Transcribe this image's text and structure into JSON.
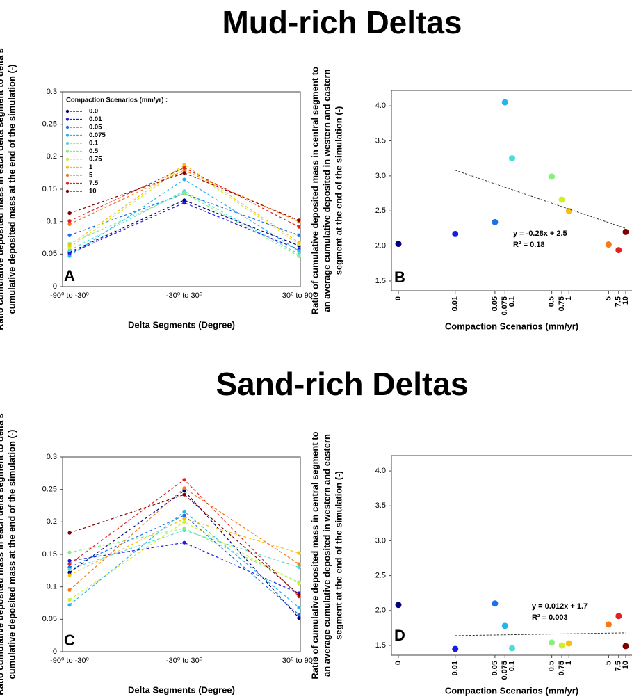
{
  "headings": [
    "Mud-rich Deltas",
    "Sand-rich Deltas"
  ],
  "chart_data": [
    {
      "type": "line",
      "label": "A",
      "categories": [
        "-90⁰ to -30⁰",
        "-30⁰ to 30⁰",
        "30⁰ to 90⁰"
      ],
      "xlabel": "Delta Segments (Degree)",
      "ylabel": [
        "Ratio cumulative deposited mass in each delta segment to delta's",
        "cumulative deposited mass at the end of the simulation (-)"
      ],
      "ylim": [
        0,
        0.3
      ],
      "yticks": [
        0,
        0.05,
        0.1,
        0.15,
        0.2,
        0.25,
        0.3
      ],
      "legend_title": "Compaction Scenarios (mm/yr) :",
      "legend": "upper left",
      "series": [
        {
          "name": "0.0",
          "color": "#00007f",
          "values": [
            0.053,
            0.133,
            0.063
          ]
        },
        {
          "name": "0.01",
          "color": "#1a1ae6",
          "values": [
            0.051,
            0.129,
            0.057
          ]
        },
        {
          "name": "0.05",
          "color": "#1f6fe6",
          "values": [
            0.079,
            0.143,
            0.079
          ]
        },
        {
          "name": "0.075",
          "color": "#22b4f0",
          "values": [
            0.047,
            0.165,
            0.055
          ]
        },
        {
          "name": "0.1",
          "color": "#4ddbd8",
          "values": [
            0.056,
            0.147,
            0.05
          ]
        },
        {
          "name": "0.5",
          "color": "#86f07a",
          "values": [
            0.066,
            0.144,
            0.047
          ]
        },
        {
          "name": "0.75",
          "color": "#cdf02a",
          "values": [
            0.06,
            0.185,
            0.065
          ]
        },
        {
          "name": "1",
          "color": "#f5c010",
          "values": [
            0.064,
            0.188,
            0.068
          ]
        },
        {
          "name": "5",
          "color": "#f57a1a",
          "values": [
            0.096,
            0.179,
            0.1
          ]
        },
        {
          "name": "7.5",
          "color": "#e62020",
          "values": [
            0.101,
            0.183,
            0.092
          ]
        },
        {
          "name": "10",
          "color": "#800000",
          "values": [
            0.113,
            0.175,
            0.102
          ]
        }
      ]
    },
    {
      "type": "scatter",
      "label": "B",
      "categories": [
        "0",
        "0.01",
        "0.05",
        "0.075",
        "0.1",
        "0.5",
        "0.75",
        "1",
        "5",
        "7.5",
        "10"
      ],
      "xscale": "log",
      "xlabel": "Compaction Scenarios (mm/yr)",
      "ylabel": [
        "Ratio of cumulative deposited mass in central segment to",
        "an average cumulative deposited in western and eastern",
        "segment at the end of the simulation  (-)"
      ],
      "ylim": [
        1.36,
        4.22
      ],
      "yticks": [
        1.5,
        {
          "value": 2,
          "label": "2.0"
        },
        2.5,
        {
          "value": 3,
          "label": "3.0"
        },
        3.5,
        {
          "value": 4,
          "label": "4.0"
        }
      ],
      "values": [
        2.03,
        2.17,
        2.34,
        4.05,
        3.25,
        2.99,
        2.66,
        2.5,
        2.02,
        1.94,
        2.2
      ],
      "colors": [
        "#00007f",
        "#1a1ae6",
        "#1f6fe6",
        "#22b4f0",
        "#4ddbd8",
        "#86f07a",
        "#cdf02a",
        "#f5c010",
        "#f57a1a",
        "#e62020",
        "#800000"
      ],
      "trend": {
        "x": [
          0.01,
          10
        ],
        "y": [
          3.08,
          2.25
        ],
        "equation": "y = -0.28x + 2.5",
        "r2": "R² = 0.18"
      }
    },
    {
      "type": "line",
      "label": "C",
      "categories": [
        "-90⁰ to -30⁰",
        "-30⁰ to 30⁰",
        "30⁰ to 90⁰"
      ],
      "xlabel": "Delta Segments (Degree)",
      "ylabel": [
        "Ratio cumulative deposited mass in each delta segment to delta's",
        "cumulative deposited mass at the end of the simulation (-)"
      ],
      "ylim": [
        0,
        0.3
      ],
      "yticks": [
        0,
        0.05,
        0.1,
        0.15,
        0.2,
        0.25,
        0.3
      ],
      "series": [
        {
          "color": "#00007f",
          "values": [
            0.122,
            0.248,
            0.052
          ]
        },
        {
          "color": "#1a1ae6",
          "values": [
            0.14,
            0.168,
            0.09
          ]
        },
        {
          "color": "#1f6fe6",
          "values": [
            0.13,
            0.21,
            0.057
          ]
        },
        {
          "color": "#22b4f0",
          "values": [
            0.072,
            0.216,
            0.068
          ]
        },
        {
          "color": "#4ddbd8",
          "values": [
            0.127,
            0.187,
            0.13
          ]
        },
        {
          "color": "#86f07a",
          "values": [
            0.153,
            0.19,
            0.107
          ]
        },
        {
          "color": "#cdf02a",
          "values": [
            0.08,
            0.2,
            0.105
          ]
        },
        {
          "color": "#f5c010",
          "values": [
            0.118,
            0.205,
            0.152
          ]
        },
        {
          "color": "#f57a1a",
          "values": [
            0.095,
            0.252,
            0.135
          ]
        },
        {
          "color": "#e62020",
          "values": [
            0.135,
            0.265,
            0.085
          ]
        },
        {
          "color": "#800000",
          "values": [
            0.183,
            0.242,
            0.088
          ]
        }
      ]
    },
    {
      "type": "scatter",
      "label": "D",
      "categories": [
        "0",
        "0.01",
        "0.05",
        "0.075",
        "0.1",
        "0.5",
        "0.75",
        "1",
        "5",
        "7.5",
        "10"
      ],
      "xscale": "log",
      "xlabel": "Compaction Scenarios (mm/yr)",
      "ylabel": [
        "Ratio of cumulative deposited mass in central segment to",
        "an average cumulative deposited in western and eastern",
        "segment at the end of the simulation  (-)"
      ],
      "ylim": [
        1.36,
        4.22
      ],
      "yticks": [
        1.5,
        {
          "value": 2,
          "label": "2.0"
        },
        2.5,
        {
          "value": 3,
          "label": "3.0"
        },
        3.5,
        {
          "value": 4,
          "label": "4.0"
        }
      ],
      "values": [
        2.08,
        1.45,
        2.1,
        1.78,
        1.46,
        1.54,
        1.5,
        1.53,
        1.8,
        1.92,
        1.49
      ],
      "colors": [
        "#00007f",
        "#1a1ae6",
        "#1f6fe6",
        "#22b4f0",
        "#4ddbd8",
        "#86f07a",
        "#cdf02a",
        "#f5c010",
        "#f57a1a",
        "#e62020",
        "#800000"
      ],
      "trend": {
        "x": [
          0.01,
          10
        ],
        "y": [
          1.64,
          1.68
        ],
        "equation": "y = 0.012x + 1.7",
        "r2": "R² = 0.003"
      }
    }
  ]
}
